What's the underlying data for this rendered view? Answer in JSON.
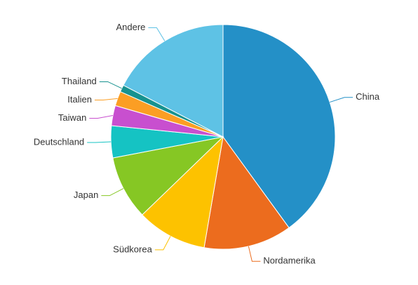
{
  "chart_data": {
    "type": "pie",
    "categories": [
      "China",
      "Nordamerika",
      "Südkorea",
      "Japan",
      "Deutschland",
      "Taiwan",
      "Italien",
      "Thailand",
      "Andere"
    ],
    "values": [
      40,
      12.7,
      10.1,
      9.2,
      4.6,
      2.9,
      2.1,
      1.0,
      17.4
    ],
    "colors": [
      "#2490c7",
      "#ec6c1e",
      "#fdc200",
      "#86c724",
      "#15c3c3",
      "#c84fcf",
      "#fb9e24",
      "#17928f",
      "#5ec2e5"
    ]
  }
}
